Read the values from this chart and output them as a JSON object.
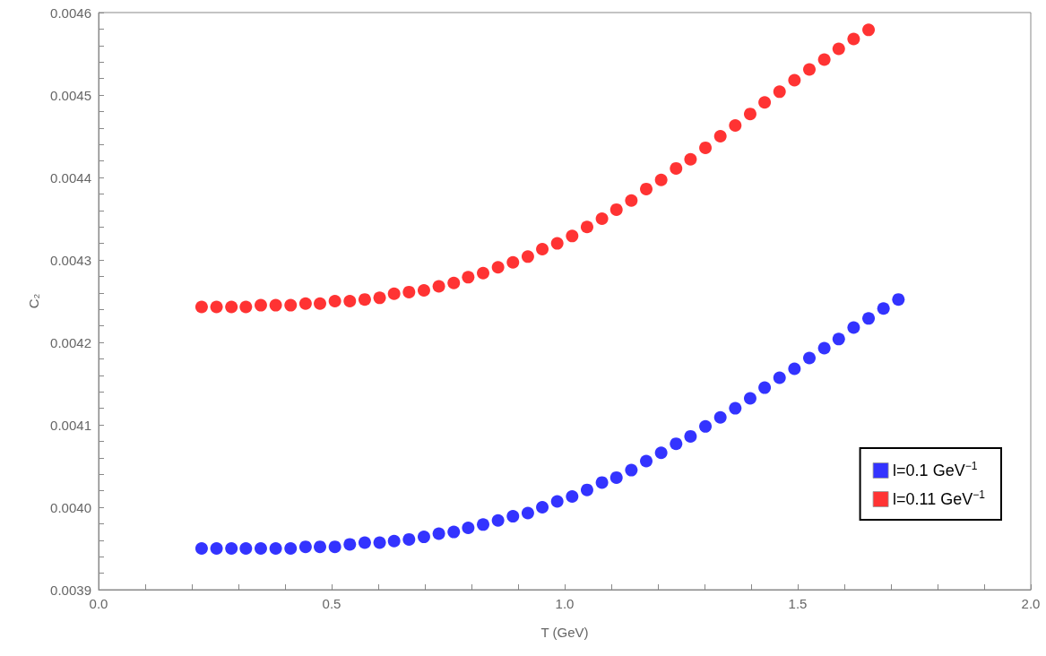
{
  "chart_data": {
    "type": "scatter",
    "xlabel": "T (GeV)",
    "ylabel": "C₂",
    "xlim": [
      0,
      2
    ],
    "ylim": [
      0.0039,
      0.0046
    ],
    "xticks": [
      {
        "value": 0,
        "label": "0.0"
      },
      {
        "value": 0.1,
        "label": null
      },
      {
        "value": 0.2,
        "label": null
      },
      {
        "value": 0.3,
        "label": null
      },
      {
        "value": 0.4,
        "label": null
      },
      {
        "value": 0.5,
        "label": "0.5"
      },
      {
        "value": 0.6,
        "label": null
      },
      {
        "value": 0.7,
        "label": null
      },
      {
        "value": 0.8,
        "label": null
      },
      {
        "value": 0.9,
        "label": null
      },
      {
        "value": 1,
        "label": "1.0"
      },
      {
        "value": 1.1,
        "label": null
      },
      {
        "value": 1.2,
        "label": null
      },
      {
        "value": 1.3,
        "label": null
      },
      {
        "value": 1.4,
        "label": null
      },
      {
        "value": 1.5,
        "label": "1.5"
      },
      {
        "value": 1.6,
        "label": null
      },
      {
        "value": 1.7,
        "label": null
      },
      {
        "value": 1.8,
        "label": null
      },
      {
        "value": 1.9,
        "label": null
      },
      {
        "value": 2,
        "label": "2.0"
      }
    ],
    "yticks": [
      {
        "value": 0.0039,
        "label": "0.0039"
      },
      {
        "value": 0.00392,
        "label": null
      },
      {
        "value": 0.00394,
        "label": null
      },
      {
        "value": 0.00396,
        "label": null
      },
      {
        "value": 0.00398,
        "label": null
      },
      {
        "value": 0.004,
        "label": "0.0040"
      },
      {
        "value": 0.00402,
        "label": null
      },
      {
        "value": 0.00404,
        "label": null
      },
      {
        "value": 0.00406,
        "label": null
      },
      {
        "value": 0.00408,
        "label": null
      },
      {
        "value": 0.0041,
        "label": "0.0041"
      },
      {
        "value": 0.00412,
        "label": null
      },
      {
        "value": 0.00414,
        "label": null
      },
      {
        "value": 0.00416,
        "label": null
      },
      {
        "value": 0.00418,
        "label": null
      },
      {
        "value": 0.0042,
        "label": "0.0042"
      },
      {
        "value": 0.00422,
        "label": null
      },
      {
        "value": 0.00424,
        "label": null
      },
      {
        "value": 0.00426,
        "label": null
      },
      {
        "value": 0.00428,
        "label": null
      },
      {
        "value": 0.0043,
        "label": "0.0043"
      },
      {
        "value": 0.00432,
        "label": null
      },
      {
        "value": 0.00434,
        "label": null
      },
      {
        "value": 0.00436,
        "label": null
      },
      {
        "value": 0.00438,
        "label": null
      },
      {
        "value": 0.0044,
        "label": "0.0044"
      },
      {
        "value": 0.00442,
        "label": null
      },
      {
        "value": 0.00444,
        "label": null
      },
      {
        "value": 0.00446,
        "label": null
      },
      {
        "value": 0.00448,
        "label": null
      },
      {
        "value": 0.0045,
        "label": "0.0045"
      },
      {
        "value": 0.00452,
        "label": null
      },
      {
        "value": 0.00454,
        "label": null
      },
      {
        "value": 0.00456,
        "label": null
      },
      {
        "value": 0.00458,
        "label": null
      },
      {
        "value": 0.0046,
        "label": "0.0046"
      }
    ],
    "grid": false,
    "legend": "bottom right",
    "marker": "circle",
    "series": [
      {
        "name": "l=0.1 GeV$^{−1}$",
        "color": "#0000ff",
        "x": [
          0.221,
          0.253,
          0.285,
          0.316,
          0.348,
          0.38,
          0.412,
          0.444,
          0.475,
          0.507,
          0.539,
          0.571,
          0.603,
          0.634,
          0.666,
          0.698,
          0.73,
          0.762,
          0.793,
          0.825,
          0.857,
          0.889,
          0.921,
          0.952,
          0.984,
          1.016,
          1.048,
          1.08,
          1.111,
          1.143,
          1.175,
          1.207,
          1.239,
          1.27,
          1.302,
          1.334,
          1.366,
          1.398,
          1.429,
          1.461,
          1.493,
          1.525,
          1.557,
          1.588,
          1.62,
          1.652,
          1.684,
          1.716
        ],
        "values": [
          0.00395,
          0.00395,
          0.00395,
          0.00395,
          0.00395,
          0.00395,
          0.00395,
          0.003952,
          0.003952,
          0.003952,
          0.003955,
          0.003957,
          0.003957,
          0.003959,
          0.003961,
          0.003964,
          0.003968,
          0.00397,
          0.003975,
          0.003979,
          0.003984,
          0.003989,
          0.003993,
          0.004,
          0.004007,
          0.004013,
          0.004021,
          0.00403,
          0.004036,
          0.004045,
          0.004056,
          0.004066,
          0.004077,
          0.004086,
          0.004098,
          0.004109,
          0.00412,
          0.004132,
          0.004145,
          0.004157,
          0.004168,
          0.004181,
          0.004193,
          0.004204,
          0.004218,
          0.004229,
          0.004241,
          0.004252
        ]
      },
      {
        "name": "l=0.11 GeV$^{−1}$",
        "color": "#ff0000",
        "x": [
          0.221,
          0.253,
          0.285,
          0.316,
          0.348,
          0.38,
          0.412,
          0.444,
          0.475,
          0.507,
          0.539,
          0.571,
          0.603,
          0.634,
          0.666,
          0.698,
          0.73,
          0.762,
          0.793,
          0.825,
          0.857,
          0.889,
          0.921,
          0.952,
          0.984,
          1.016,
          1.048,
          1.08,
          1.111,
          1.143,
          1.175,
          1.207,
          1.239,
          1.27,
          1.302,
          1.334,
          1.366,
          1.398,
          1.429,
          1.461,
          1.493,
          1.525,
          1.557,
          1.588,
          1.62,
          1.652
        ],
        "values": [
          0.004243,
          0.004243,
          0.004243,
          0.004243,
          0.004245,
          0.004245,
          0.004245,
          0.004247,
          0.004247,
          0.00425,
          0.00425,
          0.004252,
          0.004254,
          0.004259,
          0.004261,
          0.004263,
          0.004268,
          0.004272,
          0.004279,
          0.004284,
          0.004291,
          0.004297,
          0.004304,
          0.004313,
          0.00432,
          0.004329,
          0.00434,
          0.00435,
          0.004361,
          0.004372,
          0.004386,
          0.004397,
          0.004411,
          0.004422,
          0.004436,
          0.00445,
          0.004463,
          0.004477,
          0.004491,
          0.004504,
          0.004518,
          0.004531,
          0.004543,
          0.004556,
          0.004568,
          0.004579
        ]
      }
    ]
  }
}
